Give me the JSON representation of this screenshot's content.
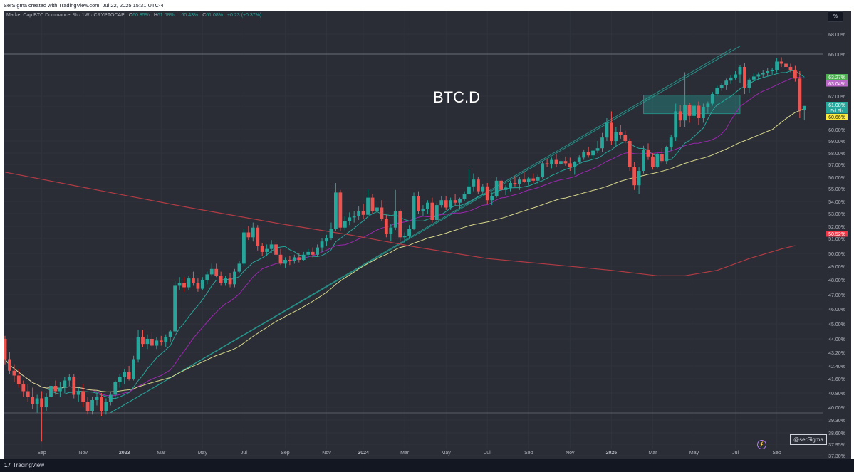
{
  "header": {
    "attribution": "SerSigma created with TradingView.com, Jul 22, 2025 15:31 UTC-4"
  },
  "legend": {
    "symbol": "Market Cap BTC Dominance, % · 1W · CRYPTOCAP",
    "o_label": "O",
    "o_value": "60.85%",
    "h_label": "H",
    "h_value": "61.08%",
    "l_label": "L",
    "l_value": "60.43%",
    "c_label": "C",
    "c_value": "61.08%",
    "change": "+0.23 (+0.37%)"
  },
  "scale_button": "%",
  "signature": "@serSigma",
  "footer": {
    "brand": "TradingView",
    "logo_glyph": "17"
  },
  "colors": {
    "background": "#2a2d36",
    "up": "#26a69a",
    "down": "#ef5350",
    "ma_fast": "#26a69a",
    "ma_mid": "#9c27b0",
    "ma_slow": "#d6d68a",
    "ma_long": "#b23b44",
    "zone": "#26a69a"
  },
  "chart_data": {
    "type": "candlestick",
    "title": "BTC.D",
    "y_unit": "%",
    "ylim": [
      37.3,
      69.0
    ],
    "y_ticks": [
      "68.00%",
      "66.00%",
      "64.00%",
      "62.00%",
      "61.00%",
      "60.00%",
      "59.00%",
      "58.00%",
      "57.00%",
      "56.00%",
      "55.00%",
      "54.00%",
      "53.00%",
      "52.00%",
      "51.00%",
      "50.00%",
      "49.00%",
      "48.00%",
      "47.00%",
      "46.00%",
      "45.00%",
      "44.00%",
      "43.20%",
      "42.40%",
      "41.60%",
      "40.80%",
      "40.00%",
      "39.30%",
      "38.60%",
      "37.95%",
      "37.30%"
    ],
    "x_ticks": [
      "Sep",
      "Nov",
      "2023",
      "Mar",
      "May",
      "Jul",
      "Sep",
      "Nov",
      "2024",
      "Mar",
      "May",
      "Jul",
      "Sep",
      "Nov",
      "2025",
      "Mar",
      "May",
      "Jul",
      "Sep"
    ],
    "price_labels": [
      {
        "text": "63.27%",
        "value": 63.27,
        "color": "#4caf50"
      },
      {
        "text": "63.04%",
        "value": 63.04,
        "color": "#ba68c8"
      },
      {
        "text": "61.08%",
        "value": 61.08,
        "color": "#26a69a"
      },
      {
        "text": "5d 6h",
        "value": 60.87,
        "color": "#26a69a"
      },
      {
        "text": "60.66%",
        "value": 60.66,
        "color": "#ffeb3b"
      },
      {
        "text": "50.52%",
        "value": 50.52,
        "color": "#f23645"
      }
    ],
    "horizontal_line": 66.0,
    "support_zone": {
      "start_week": 139,
      "end_week": 160,
      "low": 60.7,
      "high": 62.1
    },
    "trendlines": [
      {
        "from_week": 23,
        "from_value": 39.7,
        "to_week": 160,
        "to_value": 66.8
      },
      {
        "from_week": 23,
        "from_value": 39.7,
        "to_week": 158,
        "to_value": 66.5
      }
    ],
    "candles": [
      [
        44.0,
        44.2,
        42.5,
        42.8
      ],
      [
        42.8,
        43.2,
        41.9,
        42.1
      ],
      [
        42.1,
        42.5,
        41.4,
        41.8
      ],
      [
        41.8,
        42.2,
        41.1,
        41.3
      ],
      [
        41.3,
        41.5,
        40.6,
        40.9
      ],
      [
        40.9,
        41.3,
        40.3,
        40.6
      ],
      [
        40.6,
        41.1,
        39.9,
        40.2
      ],
      [
        40.2,
        40.7,
        39.7,
        40.5
      ],
      [
        40.5,
        40.9,
        38.1,
        40.0
      ],
      [
        40.0,
        40.8,
        39.8,
        40.6
      ],
      [
        40.6,
        41.4,
        40.4,
        41.2
      ],
      [
        41.2,
        41.5,
        40.7,
        40.9
      ],
      [
        40.9,
        41.4,
        40.6,
        41.1
      ],
      [
        41.1,
        41.7,
        40.8,
        41.5
      ],
      [
        41.5,
        41.9,
        41.2,
        41.7
      ],
      [
        41.7,
        41.9,
        40.5,
        40.7
      ],
      [
        40.7,
        41.1,
        40.3,
        40.9
      ],
      [
        40.9,
        41.3,
        40.0,
        40.3
      ],
      [
        40.3,
        40.6,
        39.6,
        39.8
      ],
      [
        39.8,
        40.6,
        39.6,
        40.4
      ],
      [
        40.4,
        40.9,
        40.1,
        40.6
      ],
      [
        40.6,
        40.8,
        39.5,
        39.8
      ],
      [
        39.8,
        40.5,
        39.6,
        40.3
      ],
      [
        40.3,
        40.9,
        40.1,
        40.7
      ],
      [
        40.7,
        41.5,
        40.5,
        41.4
      ],
      [
        41.4,
        41.9,
        41.1,
        41.7
      ],
      [
        41.7,
        42.2,
        41.3,
        42.0
      ],
      [
        42.0,
        42.4,
        41.5,
        41.6
      ],
      [
        41.6,
        43.0,
        41.5,
        42.8
      ],
      [
        42.8,
        44.6,
        42.6,
        44.1
      ],
      [
        44.1,
        44.6,
        43.5,
        43.7
      ],
      [
        43.7,
        44.3,
        43.4,
        44.0
      ],
      [
        44.0,
        44.4,
        43.5,
        43.6
      ],
      [
        43.6,
        44.1,
        43.4,
        43.9
      ],
      [
        43.9,
        44.2,
        43.6,
        43.8
      ],
      [
        43.8,
        44.3,
        43.5,
        44.1
      ],
      [
        44.1,
        44.6,
        43.8,
        44.5
      ],
      [
        44.5,
        47.9,
        44.4,
        47.6
      ],
      [
        47.6,
        48.2,
        47.3,
        47.8
      ],
      [
        47.8,
        48.2,
        47.2,
        47.5
      ],
      [
        47.5,
        48.3,
        47.3,
        48.1
      ],
      [
        48.1,
        48.6,
        47.6,
        47.8
      ],
      [
        47.8,
        48.1,
        47.2,
        47.4
      ],
      [
        47.4,
        48.2,
        47.3,
        48.0
      ],
      [
        48.0,
        48.6,
        47.7,
        48.4
      ],
      [
        48.4,
        49.2,
        48.3,
        48.8
      ],
      [
        48.8,
        49.2,
        48.2,
        48.3
      ],
      [
        48.3,
        48.6,
        47.6,
        47.8
      ],
      [
        47.8,
        48.3,
        47.6,
        48.1
      ],
      [
        48.1,
        48.5,
        47.5,
        47.7
      ],
      [
        47.7,
        48.8,
        47.5,
        48.6
      ],
      [
        48.6,
        49.4,
        48.5,
        49.2
      ],
      [
        49.2,
        51.8,
        49.0,
        51.5
      ],
      [
        51.5,
        52.0,
        50.9,
        51.1
      ],
      [
        51.1,
        52.3,
        50.8,
        51.9
      ],
      [
        51.9,
        52.1,
        50.2,
        50.5
      ],
      [
        50.5,
        50.7,
        49.8,
        50.1
      ],
      [
        50.1,
        50.6,
        49.8,
        50.3
      ],
      [
        50.3,
        50.9,
        50.0,
        50.6
      ],
      [
        50.6,
        50.8,
        49.7,
        49.9
      ],
      [
        49.9,
        50.3,
        49.1,
        49.2
      ],
      [
        49.2,
        49.7,
        48.9,
        49.5
      ],
      [
        49.5,
        49.8,
        49.1,
        49.4
      ],
      [
        49.4,
        49.9,
        49.2,
        49.7
      ],
      [
        49.7,
        50.0,
        49.3,
        49.5
      ],
      [
        49.5,
        50.1,
        49.4,
        49.9
      ],
      [
        49.9,
        50.3,
        49.6,
        50.1
      ],
      [
        50.1,
        50.4,
        49.7,
        49.9
      ],
      [
        49.9,
        50.6,
        49.8,
        50.4
      ],
      [
        50.4,
        51.0,
        50.1,
        50.8
      ],
      [
        50.8,
        51.3,
        50.5,
        51.0
      ],
      [
        51.0,
        52.3,
        50.9,
        51.8
      ],
      [
        51.8,
        55.5,
        51.6,
        54.7
      ],
      [
        54.7,
        54.9,
        51.6,
        51.9
      ],
      [
        51.9,
        52.8,
        51.7,
        52.4
      ],
      [
        52.4,
        53.1,
        52.1,
        52.7
      ],
      [
        52.7,
        53.2,
        52.3,
        52.8
      ],
      [
        52.8,
        53.6,
        52.5,
        53.2
      ],
      [
        53.2,
        53.8,
        52.6,
        52.9
      ],
      [
        52.9,
        55.0,
        52.7,
        54.3
      ],
      [
        54.3,
        54.6,
        53.0,
        53.2
      ],
      [
        53.2,
        54.0,
        52.8,
        53.5
      ],
      [
        53.5,
        54.1,
        52.4,
        52.6
      ],
      [
        52.6,
        52.9,
        51.1,
        51.4
      ],
      [
        51.4,
        52.2,
        50.8,
        51.9
      ],
      [
        51.9,
        54.9,
        51.7,
        53.2
      ],
      [
        53.2,
        53.4,
        50.8,
        51.1
      ],
      [
        51.1,
        51.5,
        50.7,
        51.2
      ],
      [
        51.2,
        52.1,
        51.0,
        51.8
      ],
      [
        51.8,
        54.7,
        51.7,
        54.4
      ],
      [
        54.4,
        54.8,
        53.0,
        53.2
      ],
      [
        53.2,
        53.7,
        52.8,
        53.4
      ],
      [
        53.4,
        54.1,
        53.0,
        53.9
      ],
      [
        53.9,
        54.3,
        52.3,
        52.5
      ],
      [
        52.5,
        53.9,
        52.3,
        53.7
      ],
      [
        53.7,
        54.4,
        53.5,
        54.1
      ],
      [
        54.1,
        54.4,
        53.3,
        53.5
      ],
      [
        53.5,
        54.3,
        53.3,
        54.1
      ],
      [
        54.1,
        54.6,
        53.7,
        53.9
      ],
      [
        53.9,
        54.3,
        53.4,
        54.2
      ],
      [
        54.2,
        54.8,
        54.0,
        54.6
      ],
      [
        54.6,
        56.6,
        54.5,
        55.2
      ],
      [
        55.2,
        56.3,
        54.8,
        55.8
      ],
      [
        55.8,
        56.0,
        54.6,
        54.8
      ],
      [
        54.8,
        55.4,
        54.5,
        55.2
      ],
      [
        55.2,
        55.5,
        53.8,
        54.1
      ],
      [
        54.1,
        54.7,
        53.7,
        54.4
      ],
      [
        54.4,
        56.0,
        54.3,
        55.7
      ],
      [
        55.7,
        55.9,
        54.7,
        54.9
      ],
      [
        54.9,
        55.3,
        54.5,
        55.1
      ],
      [
        55.1,
        55.7,
        54.8,
        55.5
      ],
      [
        55.5,
        56.1,
        55.2,
        55.4
      ],
      [
        55.4,
        56.0,
        54.9,
        55.8
      ],
      [
        55.8,
        56.4,
        55.5,
        55.6
      ],
      [
        55.6,
        56.0,
        55.3,
        55.9
      ],
      [
        55.9,
        56.3,
        55.5,
        55.7
      ],
      [
        55.7,
        56.2,
        55.4,
        56.0
      ],
      [
        56.0,
        57.3,
        55.9,
        57.1
      ],
      [
        57.1,
        57.5,
        56.8,
        57.0
      ],
      [
        57.0,
        57.6,
        56.7,
        57.4
      ],
      [
        57.4,
        57.9,
        56.8,
        57.0
      ],
      [
        57.0,
        57.5,
        56.6,
        57.3
      ],
      [
        57.3,
        57.7,
        56.9,
        57.1
      ],
      [
        57.1,
        57.6,
        56.5,
        56.8
      ],
      [
        56.8,
        57.3,
        56.2,
        57.2
      ],
      [
        57.2,
        57.8,
        57.0,
        57.6
      ],
      [
        57.6,
        58.3,
        57.4,
        58.1
      ],
      [
        58.1,
        58.5,
        57.6,
        57.8
      ],
      [
        57.8,
        58.3,
        57.5,
        58.2
      ],
      [
        58.2,
        59.0,
        58.0,
        58.4
      ],
      [
        58.4,
        59.7,
        58.1,
        59.3
      ],
      [
        59.3,
        60.5,
        59.0,
        60.3
      ],
      [
        60.3,
        60.8,
        58.7,
        59.0
      ],
      [
        59.0,
        60.1,
        58.6,
        59.8
      ],
      [
        59.8,
        60.2,
        59.2,
        59.5
      ],
      [
        59.5,
        59.9,
        58.8,
        59.0
      ],
      [
        59.0,
        59.2,
        56.5,
        56.8
      ],
      [
        56.8,
        57.2,
        54.9,
        55.3
      ],
      [
        55.3,
        56.8,
        54.6,
        56.5
      ],
      [
        56.5,
        58.6,
        56.3,
        58.3
      ],
      [
        58.3,
        58.8,
        57.4,
        57.7
      ],
      [
        57.7,
        58.0,
        56.6,
        56.8
      ],
      [
        56.8,
        58.0,
        56.7,
        57.9
      ],
      [
        57.9,
        58.4,
        57.1,
        57.3
      ],
      [
        57.3,
        58.6,
        57.0,
        58.5
      ],
      [
        58.5,
        59.5,
        58.2,
        59.3
      ],
      [
        59.3,
        61.3,
        59.0,
        60.8
      ],
      [
        60.8,
        61.2,
        60.1,
        60.4
      ],
      [
        60.4,
        64.3,
        60.1,
        61.2
      ],
      [
        61.2,
        61.4,
        60.3,
        60.6
      ],
      [
        60.6,
        61.3,
        60.5,
        61.1
      ],
      [
        61.1,
        61.5,
        60.2,
        60.5
      ],
      [
        60.5,
        61.3,
        60.3,
        61.0
      ],
      [
        61.0,
        61.5,
        60.7,
        61.3
      ],
      [
        61.3,
        62.4,
        61.1,
        62.2
      ],
      [
        62.2,
        63.0,
        62.0,
        62.8
      ],
      [
        62.8,
        63.3,
        62.5,
        63.1
      ],
      [
        63.1,
        63.7,
        62.6,
        63.5
      ],
      [
        63.5,
        64.0,
        63.2,
        63.8
      ],
      [
        63.8,
        64.4,
        63.6,
        64.1
      ],
      [
        64.1,
        65.0,
        63.3,
        64.8
      ],
      [
        64.8,
        65.2,
        62.2,
        62.8
      ],
      [
        62.8,
        63.8,
        62.3,
        63.6
      ],
      [
        63.6,
        64.2,
        63.4,
        63.9
      ],
      [
        63.9,
        64.3,
        63.6,
        64.1
      ],
      [
        64.1,
        64.5,
        63.8,
        64.2
      ],
      [
        64.2,
        64.7,
        63.9,
        64.4
      ],
      [
        64.4,
        64.7,
        64.0,
        64.5
      ],
      [
        64.5,
        65.6,
        64.3,
        65.3
      ],
      [
        65.3,
        65.7,
        64.8,
        65.1
      ],
      [
        65.1,
        65.3,
        64.6,
        64.8
      ],
      [
        64.8,
        65.1,
        64.3,
        64.5
      ],
      [
        64.5,
        64.9,
        63.4,
        63.7
      ],
      [
        63.7,
        64.4,
        60.5,
        60.85
      ],
      [
        60.85,
        61.08,
        60.43,
        61.08
      ]
    ]
  }
}
